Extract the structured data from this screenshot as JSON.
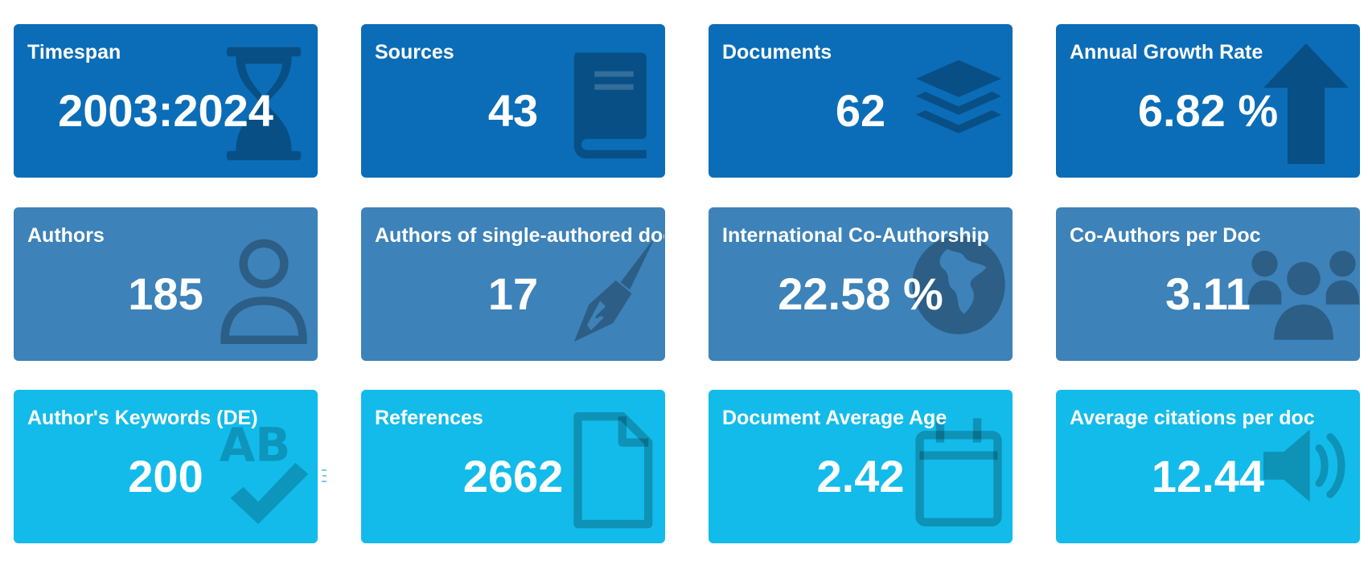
{
  "cards": [
    {
      "title": "Timespan",
      "value": "2003:2024",
      "icon": "hourglass-icon"
    },
    {
      "title": "Sources",
      "value": "43",
      "icon": "book-icon"
    },
    {
      "title": "Documents",
      "value": "62",
      "icon": "layers-icon"
    },
    {
      "title": "Annual Growth Rate",
      "value": "6.82 %",
      "icon": "arrow-up-icon"
    },
    {
      "title": "Authors",
      "value": "185",
      "icon": "user-icon"
    },
    {
      "title": "Authors of single-authored docs",
      "value": "17",
      "icon": "pen-icon"
    },
    {
      "title": "International Co-Authorship",
      "value": "22.58 %",
      "icon": "globe-icon"
    },
    {
      "title": "Co-Authors per Doc",
      "value": "3.11",
      "icon": "users-icon"
    },
    {
      "title": "Author's Keywords (DE)",
      "value": "200",
      "icon": "spellcheck-icon"
    },
    {
      "title": "References",
      "value": "2662",
      "icon": "file-icon"
    },
    {
      "title": "Document Average Age",
      "value": "2.42",
      "icon": "calendar-icon"
    },
    {
      "title": "Average citations per doc",
      "value": "12.44",
      "icon": "volume-icon"
    }
  ],
  "colors": {
    "row1_bg": "#0b6db7",
    "row2_bg": "#3d82b8",
    "row3_bg": "#12bbea",
    "text": "#ffffff",
    "icon": "rgba(0,0,0,0.28)"
  }
}
